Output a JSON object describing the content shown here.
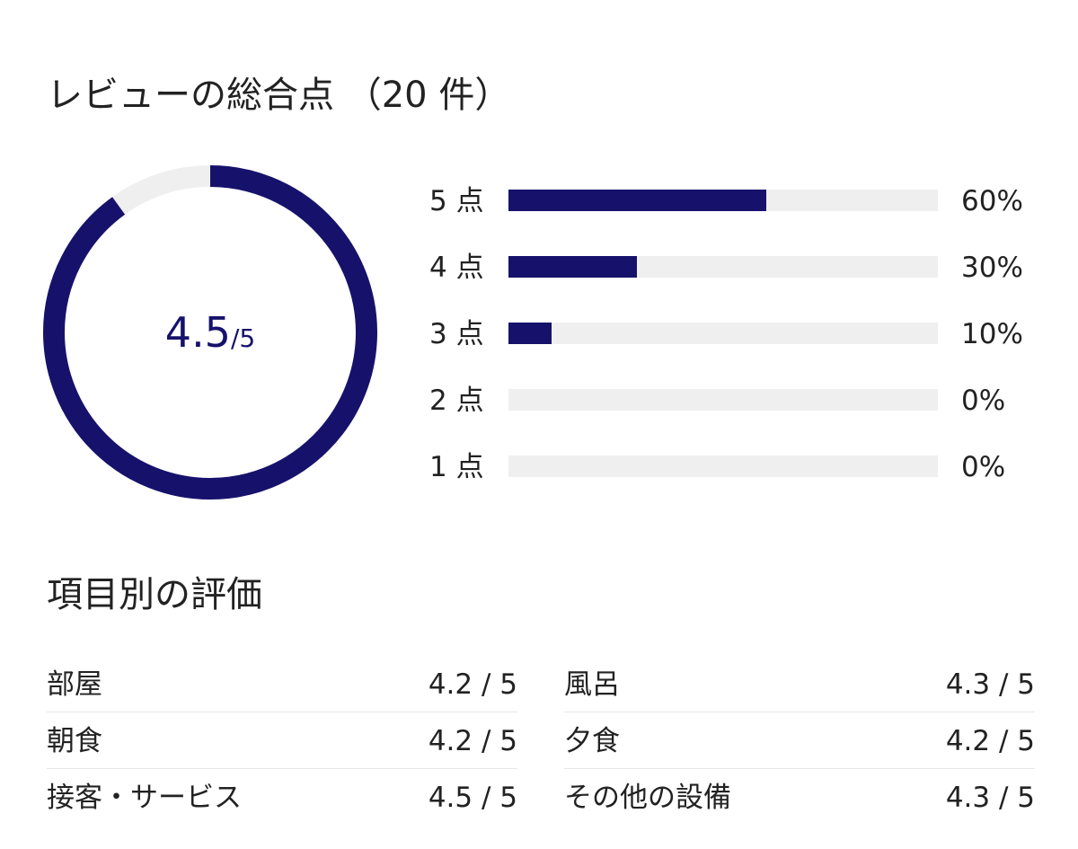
{
  "summary": {
    "title": "レビューの総合点 （20 件）",
    "score": "4.5",
    "score_max": "/5",
    "score_value": 4.5,
    "score_scale": 5
  },
  "colors": {
    "accent": "#16126b",
    "track": "#efefef",
    "text": "#222222"
  },
  "distribution": [
    {
      "label": "5 点",
      "percent": 60,
      "percent_label": "60%"
    },
    {
      "label": "4 点",
      "percent": 30,
      "percent_label": "30%"
    },
    {
      "label": "3 点",
      "percent": 10,
      "percent_label": "10%"
    },
    {
      "label": "2 点",
      "percent": 0,
      "percent_label": "0%"
    },
    {
      "label": "1 点",
      "percent": 0,
      "percent_label": "0%"
    }
  ],
  "categories": {
    "title": "項目別の評価",
    "left": [
      {
        "label": "部屋",
        "score": "4.2 / 5"
      },
      {
        "label": "朝食",
        "score": "4.2 / 5"
      },
      {
        "label": "接客・サービス",
        "score": "4.5 / 5"
      }
    ],
    "right": [
      {
        "label": "風呂",
        "score": "4.3 / 5"
      },
      {
        "label": "夕食",
        "score": "4.2 / 5"
      },
      {
        "label": "その他の設備",
        "score": "4.3 / 5"
      }
    ]
  }
}
